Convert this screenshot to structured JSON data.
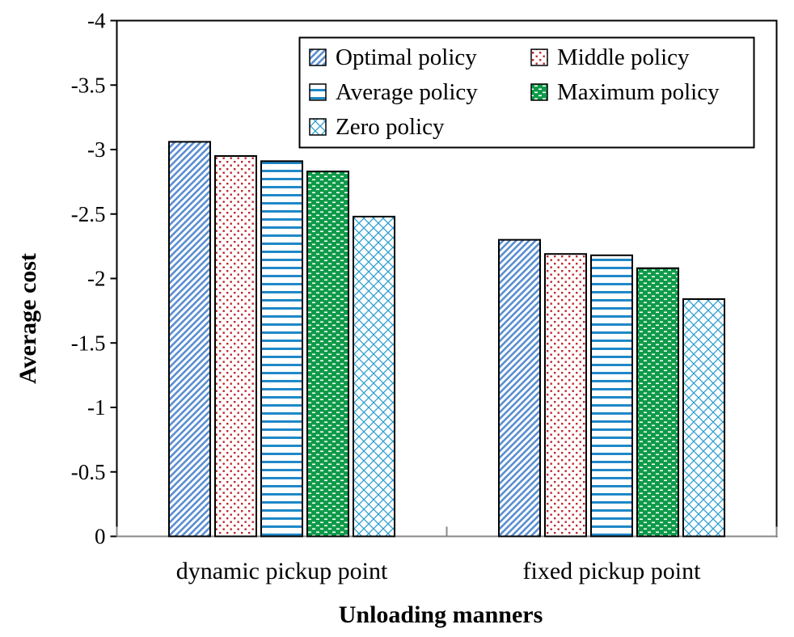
{
  "chart_data": {
    "type": "bar",
    "title": "",
    "xlabel": "Unloading manners",
    "ylabel": "Average cost",
    "categories": [
      "dynamic pickup point",
      "fixed pickup point"
    ],
    "y_ticks": [
      "-4",
      "-3.5",
      "-3",
      "-2.5",
      "-2",
      "-1.5",
      "-1",
      "-0.5",
      "0"
    ],
    "ylim": [
      0,
      -4
    ],
    "grid": false,
    "legend_position": "top-right",
    "series": [
      {
        "name": "Optimal policy",
        "values": [
          -3.06,
          -2.3
        ],
        "color": "#5b8fd0",
        "pattern": "diagonal"
      },
      {
        "name": "Middle policy",
        "values": [
          -2.95,
          -2.19
        ],
        "color": "#c0282d",
        "pattern": "dots"
      },
      {
        "name": "Average policy",
        "values": [
          -2.91,
          -2.18
        ],
        "color": "#1f88c8",
        "pattern": "horizontal"
      },
      {
        "name": "Maximum policy",
        "values": [
          -2.83,
          -2.08
        ],
        "color": "#0e9a48",
        "pattern": "dashes"
      },
      {
        "name": "Zero policy",
        "values": [
          -2.48,
          -1.84
        ],
        "color": "#2d9fd0",
        "pattern": "crosshatch"
      }
    ]
  }
}
